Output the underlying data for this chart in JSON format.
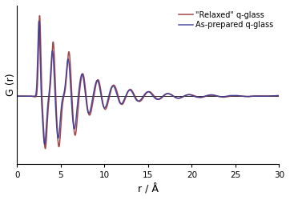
{
  "title": "",
  "xlabel": "r / Å",
  "ylabel": "G (r)",
  "xlim": [
    0,
    30
  ],
  "ylim": [
    -4.5,
    6.0
  ],
  "xticks": [
    0,
    5,
    10,
    15,
    20,
    25,
    30
  ],
  "line1_color": "#3a3a99",
  "line2_color": "#993333",
  "line1_label": "As-prepared q-glass",
  "line2_label": "\"Relaxed\" q-glass",
  "line_width": 1.1,
  "legend_fontsize": 7,
  "axis_label_fontsize": 9,
  "tick_fontsize": 7.5,
  "background_color": "#ffffff"
}
